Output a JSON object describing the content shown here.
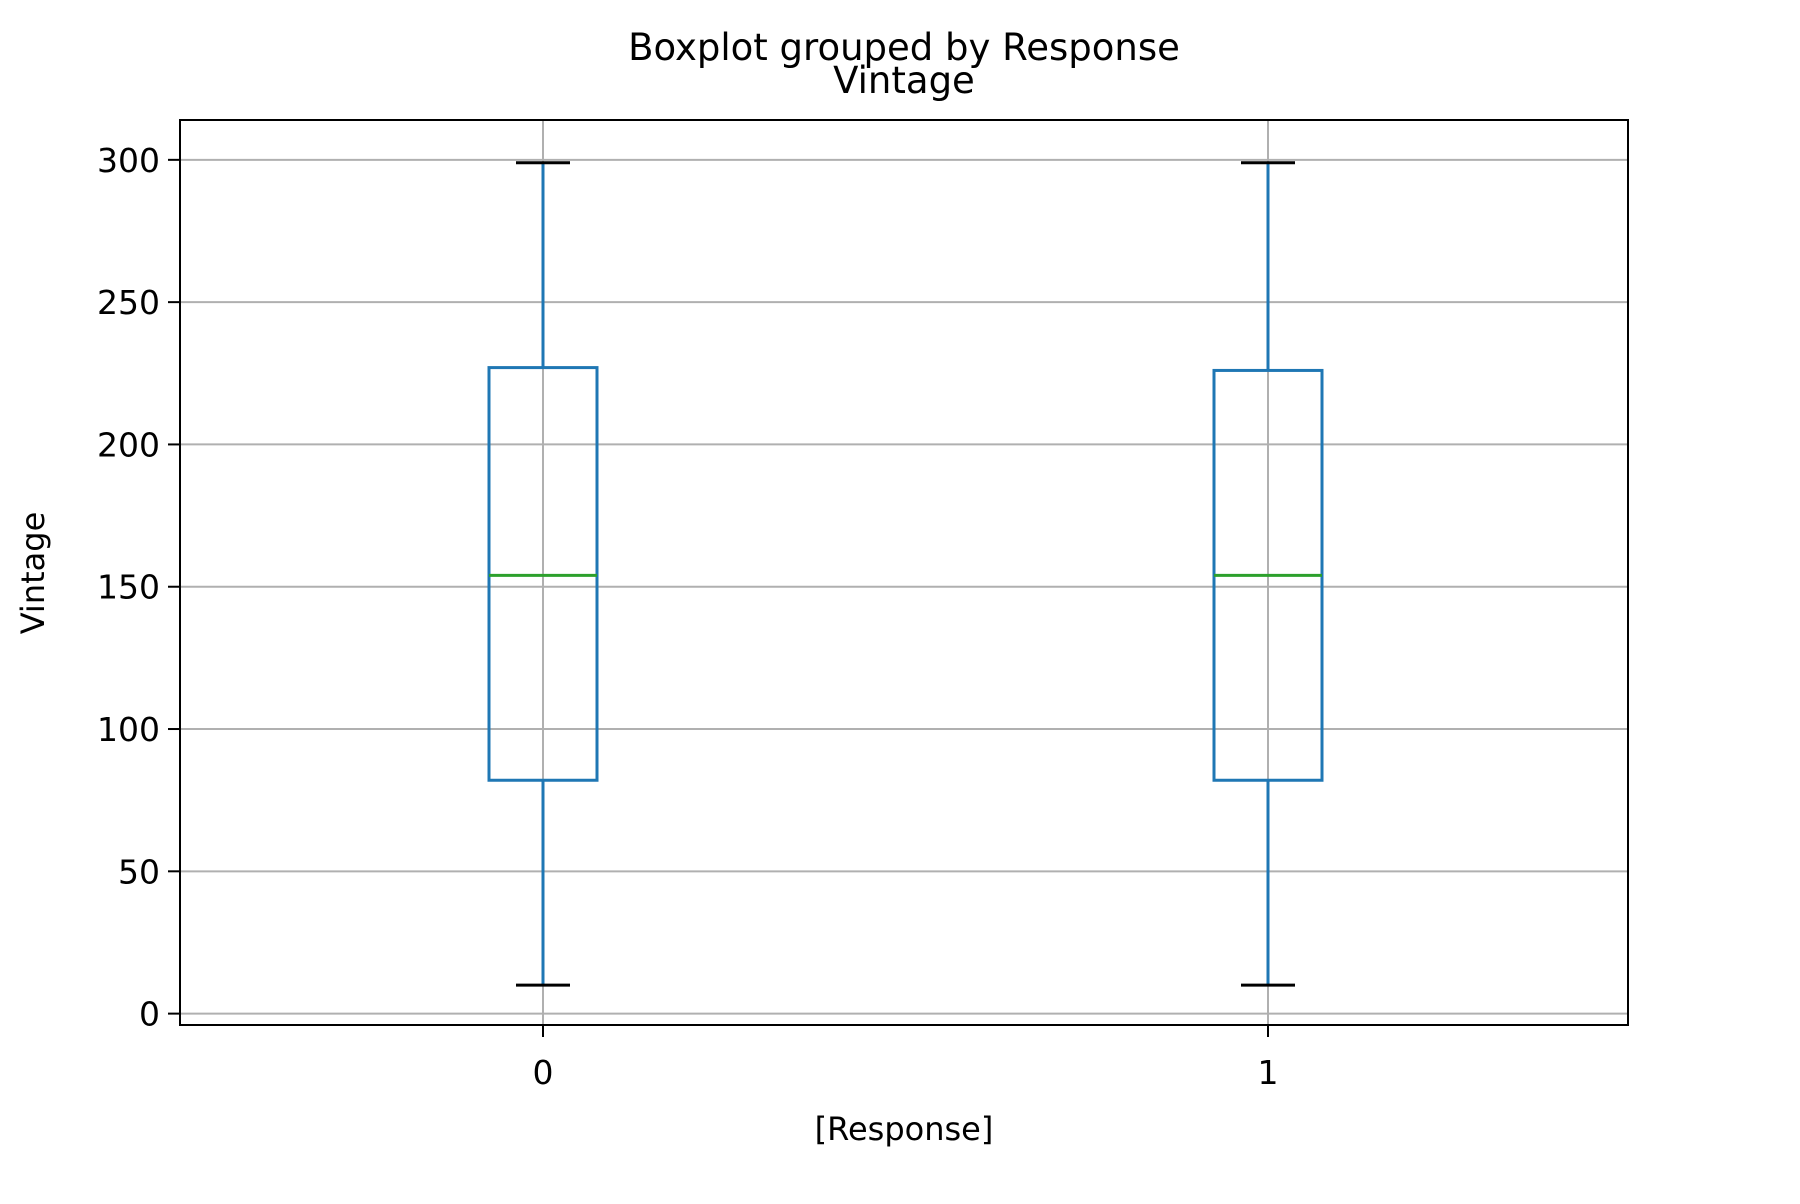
{
  "chart_data": {
    "type": "box",
    "suptitle": "Boxplot grouped by Response",
    "title": "Vintage",
    "xlabel": "[Response]",
    "ylabel": "Vintage",
    "ylim": [
      -4,
      314
    ],
    "yticks": [
      0,
      50,
      100,
      150,
      200,
      250,
      300
    ],
    "categories": [
      "0",
      "1"
    ],
    "boxes": [
      {
        "category": "0",
        "whisker_low": 10,
        "q1": 82,
        "median": 154,
        "q3": 227,
        "whisker_high": 299
      },
      {
        "category": "1",
        "whisker_low": 10,
        "q1": 82,
        "median": 154,
        "q3": 226,
        "whisker_high": 299
      }
    ],
    "grid": true,
    "colors": {
      "box": "#1f77b4",
      "median": "#2ca02c",
      "caps": "#000000",
      "grid": "#b0b0b0",
      "axes": "#000000"
    }
  }
}
